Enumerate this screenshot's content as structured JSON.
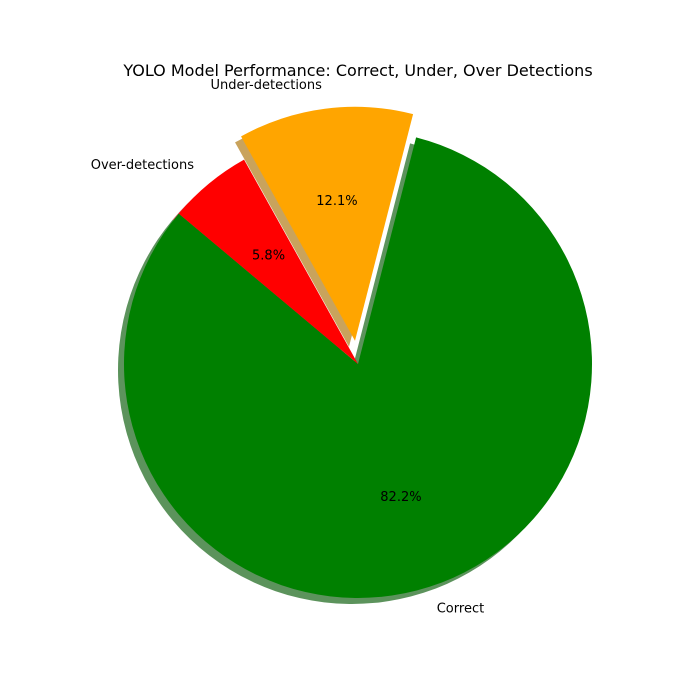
{
  "chart_data": {
    "type": "pie",
    "title": "YOLO Model Performance: Correct, Under, Over Detections",
    "slices": [
      {
        "label": "Correct",
        "value": 82.2,
        "pct_label": "82.2%",
        "color": "#008000",
        "exploded": false
      },
      {
        "label": "Under-detections",
        "value": 12.1,
        "pct_label": "12.1%",
        "color": "#FFA500",
        "exploded": true
      },
      {
        "label": "Over-detections",
        "value": 5.8,
        "pct_label": "5.8%",
        "color": "#FF0000",
        "exploded": false
      }
    ],
    "start_angle": 140,
    "direction": "counterclockwise",
    "shadow": true
  }
}
